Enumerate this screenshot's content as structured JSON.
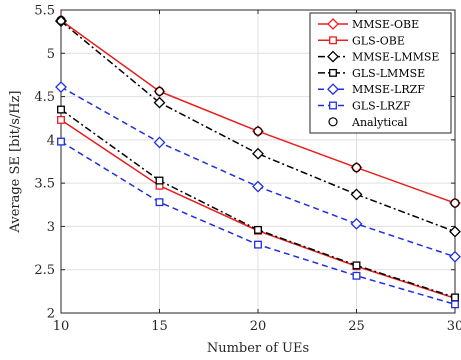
{
  "chart_data": {
    "type": "line",
    "xlabel": "Number of UEs",
    "ylabel": "Average SE [bit/s/Hz]",
    "xlim": [
      10,
      30
    ],
    "ylim": [
      2,
      5.5
    ],
    "x_ticks": [
      "10",
      "15",
      "20",
      "25",
      "30"
    ],
    "y_ticks": [
      "2",
      "2.5",
      "3",
      "3.5",
      "4",
      "4.5",
      "5",
      "5.5"
    ],
    "grid": true,
    "legend_position": "top-right",
    "x": [
      10,
      15,
      20,
      25,
      30
    ],
    "series": [
      {
        "name": "MMSE-OBE",
        "values": [
          5.38,
          4.56,
          4.1,
          3.68,
          3.27
        ],
        "color": "#e8201d",
        "dash": "solid",
        "marker": "diamond"
      },
      {
        "name": "GLS-OBE",
        "values": [
          4.23,
          3.47,
          2.95,
          2.54,
          2.17
        ],
        "color": "#e8201d",
        "dash": "solid",
        "marker": "square"
      },
      {
        "name": "MMSE-LMMSE",
        "values": [
          5.37,
          4.43,
          3.84,
          3.37,
          2.94
        ],
        "color": "#000000",
        "dash": "dashdot",
        "marker": "diamond"
      },
      {
        "name": "GLS-LMMSE",
        "values": [
          4.35,
          3.53,
          2.96,
          2.55,
          2.18
        ],
        "color": "#000000",
        "dash": "dashdot",
        "marker": "square"
      },
      {
        "name": "MMSE-LRZF",
        "values": [
          4.61,
          3.97,
          3.46,
          3.03,
          2.65
        ],
        "color": "#1f2fe0",
        "dash": "dashed",
        "marker": "diamond"
      },
      {
        "name": "GLS-LRZF",
        "values": [
          3.98,
          3.28,
          2.79,
          2.43,
          2.1
        ],
        "color": "#1f2fe0",
        "dash": "dashed",
        "marker": "square"
      },
      {
        "name": "Analytical",
        "values": [
          5.38,
          4.56,
          4.1,
          3.68,
          3.27
        ],
        "color": "#000000",
        "dash": "none",
        "marker": "circle"
      }
    ]
  }
}
